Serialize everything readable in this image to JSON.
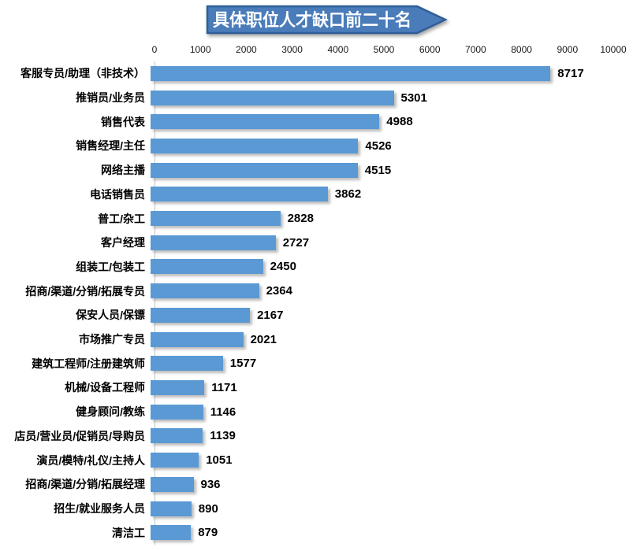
{
  "banner": {
    "title": "具体职位人才缺口前二十名",
    "fill": "#4A7CBA",
    "border": "#2F5E97",
    "text_color": "#FFFFFF"
  },
  "chart_data": {
    "type": "bar",
    "orientation": "horizontal",
    "title": "具体职位人才缺口前二十名",
    "categories": [
      "客服专员/助理（非技术）",
      "推销员/业务员",
      "销售代表",
      "销售经理/主任",
      "网络主播",
      "电话销售员",
      "普工/杂工",
      "客户经理",
      "组装工/包装工",
      "招商/渠道/分销/拓展专员",
      "保安人员/保镖",
      "市场推广专员",
      "建筑工程师/注册建筑师",
      "机械/设备工程师",
      "健身顾问/教练",
      "店员/营业员/促销员/导购员",
      "演员/模特/礼仪/主持人",
      "招商/渠道/分销/拓展经理",
      "招生/就业服务人员",
      "清洁工"
    ],
    "values": [
      8717,
      5301,
      4988,
      4526,
      4515,
      3862,
      2828,
      2727,
      2450,
      2364,
      2167,
      2021,
      1577,
      1171,
      1146,
      1139,
      1051,
      936,
      890,
      879
    ],
    "xlabel": "",
    "ylabel": "",
    "xlim": [
      0,
      10000
    ],
    "x_ticks": [
      "0",
      "1000",
      "2000",
      "3000",
      "4000",
      "5000",
      "6000",
      "7000",
      "8000",
      "9000",
      "10000"
    ],
    "bar_color": "#5A99D4",
    "axis_line_color": "#C3C3C3",
    "grid": "off",
    "legend": "none",
    "value_labels_shown": true
  }
}
